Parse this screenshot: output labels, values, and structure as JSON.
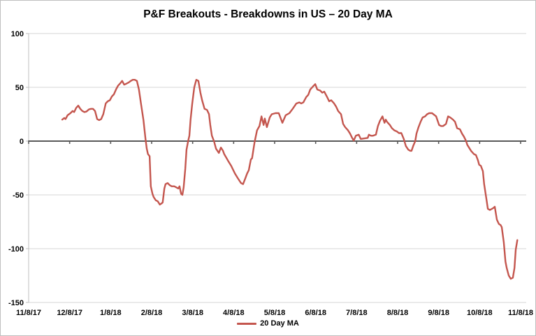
{
  "chart_data": {
    "type": "line",
    "title": "P&F Breakouts - Breakdowns in US – 20 Day MA",
    "xlabel": "",
    "ylabel": "",
    "x_unit": "months since 11/8/17",
    "x_tick_labels": [
      "11/8/17",
      "12/8/17",
      "1/8/18",
      "2/8/18",
      "3/8/18",
      "4/8/18",
      "5/8/18",
      "6/8/18",
      "7/8/18",
      "8/8/18",
      "9/8/18",
      "10/8/18",
      "11/8/18"
    ],
    "y_ticks": [
      100,
      50,
      0,
      -50,
      -100,
      -150
    ],
    "y_tick_labels": [
      "100",
      "50",
      "0",
      "-50",
      "-100",
      "-150"
    ],
    "ylim": [
      -150,
      100
    ],
    "xlim_months": [
      0,
      12
    ],
    "grid": "horizontal",
    "legend_position": "bottom-center",
    "series": [
      {
        "name": "20 Day MA",
        "color": "#c4564e",
        "points": [
          [
            0.82,
            20
          ],
          [
            0.87,
            21.5
          ],
          [
            0.9,
            20.5
          ],
          [
            0.95,
            24
          ],
          [
            1.02,
            26
          ],
          [
            1.07,
            28
          ],
          [
            1.11,
            27
          ],
          [
            1.16,
            31
          ],
          [
            1.21,
            33
          ],
          [
            1.26,
            30
          ],
          [
            1.31,
            28
          ],
          [
            1.36,
            27
          ],
          [
            1.41,
            27.5
          ],
          [
            1.47,
            29.5
          ],
          [
            1.52,
            30
          ],
          [
            1.57,
            30
          ],
          [
            1.62,
            28
          ],
          [
            1.67,
            20.5
          ],
          [
            1.72,
            19.5
          ],
          [
            1.77,
            20.5
          ],
          [
            1.82,
            25
          ],
          [
            1.88,
            35
          ],
          [
            1.93,
            37
          ],
          [
            1.98,
            38
          ],
          [
            2.03,
            41.5
          ],
          [
            2.08,
            43.5
          ],
          [
            2.13,
            48
          ],
          [
            2.18,
            51.5
          ],
          [
            2.23,
            53.5
          ],
          [
            2.28,
            56
          ],
          [
            2.33,
            52.5
          ],
          [
            2.39,
            53.5
          ],
          [
            2.44,
            54.5
          ],
          [
            2.49,
            56
          ],
          [
            2.54,
            57
          ],
          [
            2.59,
            57
          ],
          [
            2.64,
            56
          ],
          [
            2.69,
            48
          ],
          [
            2.74,
            35
          ],
          [
            2.8,
            19.5
          ],
          [
            2.85,
            2
          ],
          [
            2.88,
            -7
          ],
          [
            2.91,
            -12
          ],
          [
            2.95,
            -14
          ],
          [
            2.98,
            -42
          ],
          [
            3.02,
            -49
          ],
          [
            3.05,
            -52
          ],
          [
            3.1,
            -55
          ],
          [
            3.15,
            -56
          ],
          [
            3.2,
            -59
          ],
          [
            3.24,
            -58
          ],
          [
            3.27,
            -57
          ],
          [
            3.31,
            -44
          ],
          [
            3.34,
            -40
          ],
          [
            3.39,
            -39
          ],
          [
            3.44,
            -41
          ],
          [
            3.49,
            -42
          ],
          [
            3.55,
            -42
          ],
          [
            3.6,
            -43
          ],
          [
            3.65,
            -44
          ],
          [
            3.68,
            -42
          ],
          [
            3.72,
            -49
          ],
          [
            3.75,
            -50
          ],
          [
            3.78,
            -43
          ],
          [
            3.82,
            -26
          ],
          [
            3.85,
            -8
          ],
          [
            3.89,
            0
          ],
          [
            3.92,
            5
          ],
          [
            3.95,
            20
          ],
          [
            3.99,
            35
          ],
          [
            4.04,
            50
          ],
          [
            4.09,
            57
          ],
          [
            4.14,
            56
          ],
          [
            4.19,
            45
          ],
          [
            4.23,
            38
          ],
          [
            4.29,
            30
          ],
          [
            4.35,
            29
          ],
          [
            4.4,
            25
          ],
          [
            4.43,
            15
          ],
          [
            4.47,
            5
          ],
          [
            4.52,
            0
          ],
          [
            4.57,
            -7
          ],
          [
            4.64,
            -11
          ],
          [
            4.69,
            -6
          ],
          [
            4.74,
            -9
          ],
          [
            4.77,
            -12
          ],
          [
            4.86,
            -18
          ],
          [
            4.94,
            -23
          ],
          [
            5.03,
            -30
          ],
          [
            5.11,
            -35
          ],
          [
            5.18,
            -39
          ],
          [
            5.23,
            -40
          ],
          [
            5.28,
            -35
          ],
          [
            5.33,
            -30
          ],
          [
            5.37,
            -27
          ],
          [
            5.42,
            -17
          ],
          [
            5.45,
            -16
          ],
          [
            5.51,
            -1
          ],
          [
            5.57,
            10
          ],
          [
            5.63,
            14
          ],
          [
            5.68,
            23
          ],
          [
            5.73,
            15
          ],
          [
            5.76,
            21
          ],
          [
            5.81,
            13
          ],
          [
            5.88,
            22
          ],
          [
            5.93,
            25
          ],
          [
            6.02,
            26
          ],
          [
            6.1,
            26
          ],
          [
            6.19,
            17
          ],
          [
            6.27,
            24
          ],
          [
            6.36,
            26
          ],
          [
            6.44,
            30
          ],
          [
            6.53,
            35
          ],
          [
            6.6,
            36
          ],
          [
            6.65,
            35
          ],
          [
            6.7,
            36
          ],
          [
            6.77,
            41
          ],
          [
            6.82,
            43
          ],
          [
            6.87,
            48
          ],
          [
            6.94,
            51
          ],
          [
            6.99,
            53
          ],
          [
            7.04,
            48
          ],
          [
            7.11,
            47
          ],
          [
            7.16,
            45
          ],
          [
            7.21,
            46
          ],
          [
            7.28,
            41
          ],
          [
            7.33,
            37
          ],
          [
            7.38,
            38
          ],
          [
            7.45,
            35
          ],
          [
            7.5,
            32
          ],
          [
            7.55,
            28
          ],
          [
            7.62,
            25
          ],
          [
            7.67,
            16
          ],
          [
            7.72,
            13
          ],
          [
            7.79,
            10
          ],
          [
            7.84,
            7
          ],
          [
            7.89,
            3
          ],
          [
            7.93,
            0.5
          ],
          [
            7.98,
            5
          ],
          [
            8.05,
            6
          ],
          [
            8.1,
            2
          ],
          [
            8.18,
            2.5
          ],
          [
            8.27,
            3
          ],
          [
            8.3,
            6
          ],
          [
            8.35,
            5
          ],
          [
            8.4,
            5
          ],
          [
            8.47,
            6
          ],
          [
            8.52,
            14
          ],
          [
            8.57,
            19
          ],
          [
            8.63,
            23
          ],
          [
            8.68,
            17
          ],
          [
            8.71,
            20
          ],
          [
            8.74,
            18
          ],
          [
            8.81,
            15
          ],
          [
            8.86,
            12
          ],
          [
            8.92,
            10
          ],
          [
            8.98,
            9
          ],
          [
            9.03,
            7.5
          ],
          [
            9.09,
            7.5
          ],
          [
            9.15,
            2
          ],
          [
            9.2,
            -4.5
          ],
          [
            9.26,
            -8
          ],
          [
            9.31,
            -9
          ],
          [
            9.34,
            -9
          ],
          [
            9.38,
            -4.5
          ],
          [
            9.43,
            0
          ],
          [
            9.46,
            7
          ],
          [
            9.51,
            13
          ],
          [
            9.56,
            18
          ],
          [
            9.61,
            22
          ],
          [
            9.67,
            23
          ],
          [
            9.72,
            25
          ],
          [
            9.77,
            26
          ],
          [
            9.84,
            26
          ],
          [
            9.89,
            24.5
          ],
          [
            9.94,
            23
          ],
          [
            10.01,
            15
          ],
          [
            10.06,
            14
          ],
          [
            10.11,
            14
          ],
          [
            10.18,
            16
          ],
          [
            10.23,
            23
          ],
          [
            10.28,
            22
          ],
          [
            10.35,
            20
          ],
          [
            10.4,
            18
          ],
          [
            10.45,
            12
          ],
          [
            10.52,
            11
          ],
          [
            10.57,
            7
          ],
          [
            10.62,
            4
          ],
          [
            10.67,
            0
          ],
          [
            10.7,
            -3.5
          ],
          [
            10.74,
            -6
          ],
          [
            10.79,
            -9
          ],
          [
            10.86,
            -12
          ],
          [
            10.91,
            -13
          ],
          [
            10.96,
            -18
          ],
          [
            10.99,
            -22
          ],
          [
            11.03,
            -23
          ],
          [
            11.08,
            -28
          ],
          [
            11.11,
            -40
          ],
          [
            11.17,
            -55
          ],
          [
            11.2,
            -63
          ],
          [
            11.25,
            -64
          ],
          [
            11.3,
            -63
          ],
          [
            11.34,
            -62
          ],
          [
            11.37,
            -61
          ],
          [
            11.42,
            -73
          ],
          [
            11.47,
            -77
          ],
          [
            11.51,
            -78
          ],
          [
            11.54,
            -80
          ],
          [
            11.59,
            -94
          ],
          [
            11.63,
            -112
          ],
          [
            11.66,
            -118
          ],
          [
            11.71,
            -125
          ],
          [
            11.76,
            -128
          ],
          [
            11.81,
            -127
          ],
          [
            11.85,
            -118
          ],
          [
            11.88,
            -101
          ],
          [
            11.92,
            -92
          ]
        ]
      }
    ]
  },
  "legend": {
    "label": "20 Day MA"
  },
  "colors": {
    "background": "#ffffff",
    "border": "#bfbfbf",
    "gridline": "#d6d6d6",
    "zero_line": "#595959",
    "axis_line": "#bfbfbf",
    "tick": "#595959",
    "text": "#000000",
    "series": "#c4564e"
  }
}
